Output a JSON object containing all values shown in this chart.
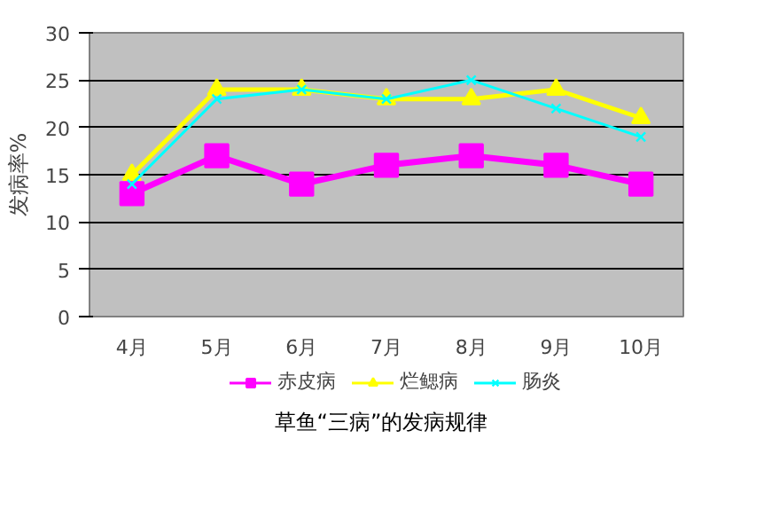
{
  "chart_data": {
    "type": "line",
    "title": "草鱼“三病”的发病规律",
    "ylabel": "发病率%",
    "categories": [
      "4月",
      "5月",
      "6月",
      "7月",
      "8月",
      "9月",
      "10月"
    ],
    "series": [
      {
        "name": "赤皮病",
        "color": "#ff00ff",
        "marker": "square",
        "values": [
          13,
          17,
          14,
          16,
          17,
          16,
          14
        ]
      },
      {
        "name": "烂鳃病",
        "color": "#ffff00",
        "marker": "triangle",
        "values": [
          15,
          24,
          24,
          23,
          23,
          24,
          21
        ]
      },
      {
        "name": "肠炎",
        "color": "#00ffff",
        "marker": "cross",
        "values": [
          14,
          23,
          24,
          23,
          25,
          22,
          19
        ]
      }
    ],
    "ylim": [
      0,
      30
    ],
    "yticks": [
      0,
      5,
      10,
      15,
      20,
      25,
      30
    ],
    "grid": "y",
    "legend": "bottom"
  }
}
